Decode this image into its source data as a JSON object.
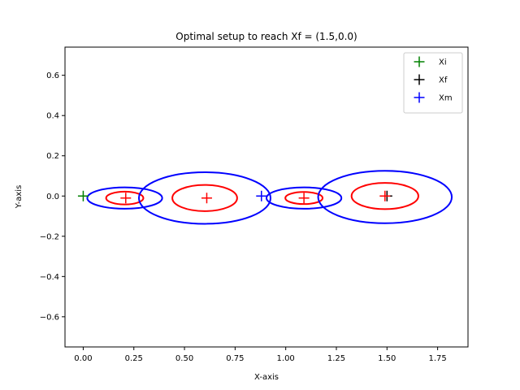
{
  "chart_data": {
    "type": "scatter",
    "title": "Optimal setup to reach Xf = (1.5,0.0)",
    "xlabel": "X-axis",
    "ylabel": "Y-axis",
    "xlim": [
      -0.09,
      1.9
    ],
    "ylim": [
      -0.75,
      0.74
    ],
    "xticks": [
      0.0,
      0.25,
      0.5,
      0.75,
      1.0,
      1.25,
      1.5,
      1.75
    ],
    "xtick_labels": [
      "0.00",
      "0.25",
      "0.50",
      "0.75",
      "1.00",
      "1.25",
      "1.50",
      "1.75"
    ],
    "yticks": [
      -0.6,
      -0.4,
      -0.2,
      0.0,
      0.2,
      0.4,
      0.6
    ],
    "ytick_labels": [
      "−0.6",
      "−0.4",
      "−0.2",
      "0.0",
      "0.2",
      "0.4",
      "0.6"
    ],
    "grid": false,
    "legend_position": "top-right",
    "colors": {
      "red": "#ff0000",
      "blue": "#0000ff",
      "green": "#008000",
      "black": "#000000"
    },
    "legend": [
      {
        "label": "Xi",
        "color": "#008000"
      },
      {
        "label": "Xf",
        "color": "#000000"
      },
      {
        "label": "Xm",
        "color": "#0000ff"
      }
    ],
    "markers": [
      {
        "name": "Xi",
        "x": 0.0,
        "y": 0.0,
        "color": "#008000"
      },
      {
        "name": "Xf",
        "x": 1.5,
        "y": 0.0,
        "color": "#000000"
      },
      {
        "name": "Xm",
        "x": 0.88,
        "y": 0.0,
        "color": "#0000ff"
      },
      {
        "name": "",
        "x": 0.21,
        "y": -0.01,
        "color": "#ff0000"
      },
      {
        "name": "",
        "x": 0.61,
        "y": -0.01,
        "color": "#ff0000"
      },
      {
        "name": "",
        "x": 1.09,
        "y": -0.01,
        "color": "#ff0000"
      },
      {
        "name": "",
        "x": 1.49,
        "y": 0.0,
        "color": "#ff0000"
      }
    ],
    "ellipses": [
      {
        "cx": 0.205,
        "cy": -0.01,
        "rx": 0.092,
        "ry": 0.032,
        "color": "#ff0000"
      },
      {
        "cx": 0.6,
        "cy": -0.01,
        "rx": 0.16,
        "ry": 0.065,
        "color": "#ff0000"
      },
      {
        "cx": 1.09,
        "cy": -0.01,
        "rx": 0.092,
        "ry": 0.03,
        "color": "#ff0000"
      },
      {
        "cx": 1.49,
        "cy": 0.0,
        "rx": 0.165,
        "ry": 0.065,
        "color": "#ff0000"
      },
      {
        "cx": 0.205,
        "cy": -0.01,
        "rx": 0.185,
        "ry": 0.053,
        "color": "#0000ff"
      },
      {
        "cx": 0.6,
        "cy": -0.01,
        "rx": 0.325,
        "ry": 0.128,
        "color": "#0000ff"
      },
      {
        "cx": 1.09,
        "cy": -0.01,
        "rx": 0.185,
        "ry": 0.053,
        "color": "#0000ff"
      },
      {
        "cx": 1.49,
        "cy": -0.005,
        "rx": 0.33,
        "ry": 0.13,
        "color": "#0000ff"
      }
    ]
  }
}
